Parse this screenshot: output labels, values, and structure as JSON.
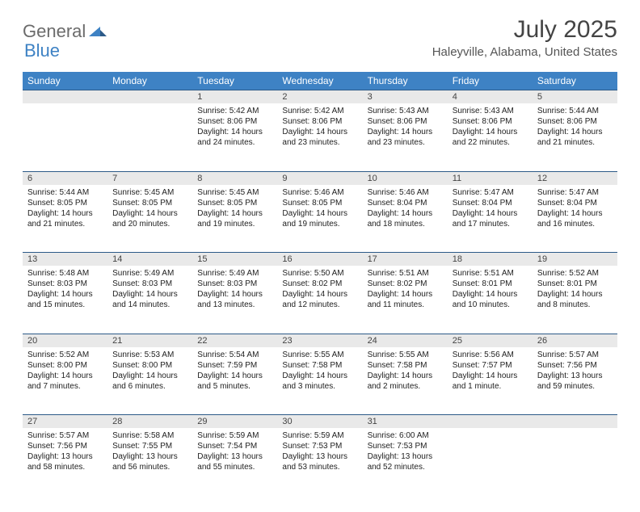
{
  "logo": {
    "left": "General",
    "right": "Blue",
    "mark_color": "#3e82c4"
  },
  "title": "July 2025",
  "location": "Haleyville, Alabama, United States",
  "header_bg": "#3e82c4",
  "daynum_bg": "#e9e9e9",
  "border_color": "#2c5a88",
  "days": [
    "Sunday",
    "Monday",
    "Tuesday",
    "Wednesday",
    "Thursday",
    "Friday",
    "Saturday"
  ],
  "weeks": [
    [
      null,
      null,
      {
        "n": "1",
        "sunrise": "5:42 AM",
        "sunset": "8:06 PM",
        "daylight": "14 hours and 24 minutes."
      },
      {
        "n": "2",
        "sunrise": "5:42 AM",
        "sunset": "8:06 PM",
        "daylight": "14 hours and 23 minutes."
      },
      {
        "n": "3",
        "sunrise": "5:43 AM",
        "sunset": "8:06 PM",
        "daylight": "14 hours and 23 minutes."
      },
      {
        "n": "4",
        "sunrise": "5:43 AM",
        "sunset": "8:06 PM",
        "daylight": "14 hours and 22 minutes."
      },
      {
        "n": "5",
        "sunrise": "5:44 AM",
        "sunset": "8:06 PM",
        "daylight": "14 hours and 21 minutes."
      }
    ],
    [
      {
        "n": "6",
        "sunrise": "5:44 AM",
        "sunset": "8:05 PM",
        "daylight": "14 hours and 21 minutes."
      },
      {
        "n": "7",
        "sunrise": "5:45 AM",
        "sunset": "8:05 PM",
        "daylight": "14 hours and 20 minutes."
      },
      {
        "n": "8",
        "sunrise": "5:45 AM",
        "sunset": "8:05 PM",
        "daylight": "14 hours and 19 minutes."
      },
      {
        "n": "9",
        "sunrise": "5:46 AM",
        "sunset": "8:05 PM",
        "daylight": "14 hours and 19 minutes."
      },
      {
        "n": "10",
        "sunrise": "5:46 AM",
        "sunset": "8:04 PM",
        "daylight": "14 hours and 18 minutes."
      },
      {
        "n": "11",
        "sunrise": "5:47 AM",
        "sunset": "8:04 PM",
        "daylight": "14 hours and 17 minutes."
      },
      {
        "n": "12",
        "sunrise": "5:47 AM",
        "sunset": "8:04 PM",
        "daylight": "14 hours and 16 minutes."
      }
    ],
    [
      {
        "n": "13",
        "sunrise": "5:48 AM",
        "sunset": "8:03 PM",
        "daylight": "14 hours and 15 minutes."
      },
      {
        "n": "14",
        "sunrise": "5:49 AM",
        "sunset": "8:03 PM",
        "daylight": "14 hours and 14 minutes."
      },
      {
        "n": "15",
        "sunrise": "5:49 AM",
        "sunset": "8:03 PM",
        "daylight": "14 hours and 13 minutes."
      },
      {
        "n": "16",
        "sunrise": "5:50 AM",
        "sunset": "8:02 PM",
        "daylight": "14 hours and 12 minutes."
      },
      {
        "n": "17",
        "sunrise": "5:51 AM",
        "sunset": "8:02 PM",
        "daylight": "14 hours and 11 minutes."
      },
      {
        "n": "18",
        "sunrise": "5:51 AM",
        "sunset": "8:01 PM",
        "daylight": "14 hours and 10 minutes."
      },
      {
        "n": "19",
        "sunrise": "5:52 AM",
        "sunset": "8:01 PM",
        "daylight": "14 hours and 8 minutes."
      }
    ],
    [
      {
        "n": "20",
        "sunrise": "5:52 AM",
        "sunset": "8:00 PM",
        "daylight": "14 hours and 7 minutes."
      },
      {
        "n": "21",
        "sunrise": "5:53 AM",
        "sunset": "8:00 PM",
        "daylight": "14 hours and 6 minutes."
      },
      {
        "n": "22",
        "sunrise": "5:54 AM",
        "sunset": "7:59 PM",
        "daylight": "14 hours and 5 minutes."
      },
      {
        "n": "23",
        "sunrise": "5:55 AM",
        "sunset": "7:58 PM",
        "daylight": "14 hours and 3 minutes."
      },
      {
        "n": "24",
        "sunrise": "5:55 AM",
        "sunset": "7:58 PM",
        "daylight": "14 hours and 2 minutes."
      },
      {
        "n": "25",
        "sunrise": "5:56 AM",
        "sunset": "7:57 PM",
        "daylight": "14 hours and 1 minute."
      },
      {
        "n": "26",
        "sunrise": "5:57 AM",
        "sunset": "7:56 PM",
        "daylight": "13 hours and 59 minutes."
      }
    ],
    [
      {
        "n": "27",
        "sunrise": "5:57 AM",
        "sunset": "7:56 PM",
        "daylight": "13 hours and 58 minutes."
      },
      {
        "n": "28",
        "sunrise": "5:58 AM",
        "sunset": "7:55 PM",
        "daylight": "13 hours and 56 minutes."
      },
      {
        "n": "29",
        "sunrise": "5:59 AM",
        "sunset": "7:54 PM",
        "daylight": "13 hours and 55 minutes."
      },
      {
        "n": "30",
        "sunrise": "5:59 AM",
        "sunset": "7:53 PM",
        "daylight": "13 hours and 53 minutes."
      },
      {
        "n": "31",
        "sunrise": "6:00 AM",
        "sunset": "7:53 PM",
        "daylight": "13 hours and 52 minutes."
      },
      null,
      null
    ]
  ],
  "labels": {
    "sunrise": "Sunrise:",
    "sunset": "Sunset:",
    "daylight": "Daylight:"
  }
}
